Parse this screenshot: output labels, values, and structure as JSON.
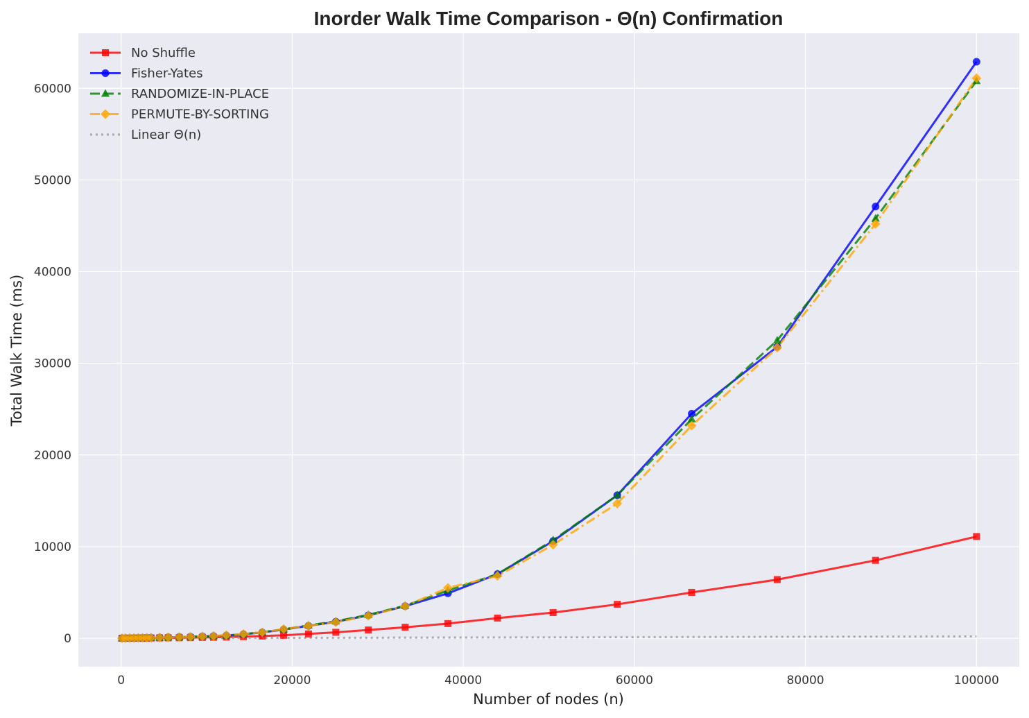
{
  "chart_data": {
    "type": "line",
    "title": "Inorder Walk Time Comparison - Θ(n) Confirmation",
    "xlabel": "Number of nodes (n)",
    "ylabel": "Total Walk Time (ms)",
    "xlim": [
      -5000,
      105000
    ],
    "ylim": [
      -3100,
      66000
    ],
    "x_ticks": [
      0,
      20000,
      40000,
      60000,
      80000,
      100000
    ],
    "y_ticks": [
      0,
      10000,
      20000,
      30000,
      40000,
      50000,
      60000
    ],
    "grid": true,
    "legend_position": "top-left",
    "series": [
      {
        "name": "No Shuffle",
        "color": "#ff0000",
        "line_style": "solid",
        "marker": "square",
        "x": [
          100,
          500,
          1000,
          1500,
          2000,
          2500,
          3000,
          3500,
          4500,
          5500,
          6800,
          8100,
          9500,
          10800,
          12300,
          14300,
          16500,
          19000,
          21900,
          25100,
          28900,
          33200,
          38200,
          44000,
          50500,
          58000,
          66700,
          76700,
          88200,
          100000
        ],
        "y": [
          2,
          5,
          8,
          12,
          15,
          18,
          22,
          26,
          34,
          43,
          56,
          70,
          88,
          105,
          130,
          175,
          240,
          320,
          470,
          650,
          900,
          1200,
          1600,
          2200,
          2800,
          3700,
          5000,
          6400,
          8500,
          11100
        ]
      },
      {
        "name": "Fisher-Yates",
        "color": "#0000ff",
        "line_style": "solid",
        "marker": "circle",
        "x": [
          100,
          500,
          1000,
          1500,
          2000,
          2500,
          3000,
          3500,
          4500,
          5500,
          6800,
          8100,
          9500,
          10800,
          12300,
          14300,
          16500,
          19000,
          21900,
          25100,
          28900,
          33200,
          38200,
          44000,
          50500,
          58000,
          66700,
          76700,
          88200,
          100000
        ],
        "y": [
          5,
          10,
          18,
          26,
          34,
          43,
          52,
          62,
          82,
          104,
          132,
          162,
          200,
          240,
          300,
          440,
          640,
          950,
          1350,
          1800,
          2500,
          3500,
          4900,
          7000,
          10600,
          15600,
          24500,
          31800,
          47100,
          62900
        ]
      },
      {
        "name": "RANDOMIZE-IN-PLACE",
        "color": "#008000",
        "line_style": "dashed",
        "marker": "triangle",
        "x": [
          100,
          500,
          1000,
          1500,
          2000,
          2500,
          3000,
          3500,
          4500,
          5500,
          6800,
          8100,
          9500,
          10800,
          12300,
          14300,
          16500,
          19000,
          21900,
          25100,
          28900,
          33200,
          38200,
          44000,
          50500,
          58000,
          66700,
          76700,
          88200,
          100000
        ],
        "y": [
          5,
          10,
          18,
          26,
          34,
          43,
          52,
          62,
          82,
          104,
          132,
          162,
          200,
          240,
          300,
          450,
          660,
          980,
          1400,
          1850,
          2550,
          3550,
          5200,
          7000,
          10700,
          15600,
          23900,
          32500,
          45800,
          60800
        ]
      },
      {
        "name": "PERMUTE-BY-SORTING",
        "color": "#ffa500",
        "line_style": "dashdot",
        "marker": "diamond",
        "x": [
          100,
          500,
          1000,
          1500,
          2000,
          2500,
          3000,
          3500,
          4500,
          5500,
          6800,
          8100,
          9500,
          10800,
          12300,
          14300,
          16500,
          19000,
          21900,
          25100,
          28900,
          33200,
          38200,
          44000,
          50500,
          58000,
          66700,
          76700,
          88200,
          100000
        ],
        "y": [
          5,
          10,
          18,
          26,
          34,
          43,
          52,
          62,
          82,
          104,
          132,
          162,
          200,
          250,
          330,
          470,
          650,
          1000,
          1350,
          1750,
          2450,
          3500,
          5500,
          6800,
          10200,
          14700,
          23200,
          31700,
          45200,
          61100
        ]
      },
      {
        "name": "Linear Θ(n)",
        "color": "#999999",
        "line_style": "dotted",
        "marker": "none",
        "x": [
          0,
          100000
        ],
        "y": [
          0,
          200
        ]
      }
    ]
  }
}
